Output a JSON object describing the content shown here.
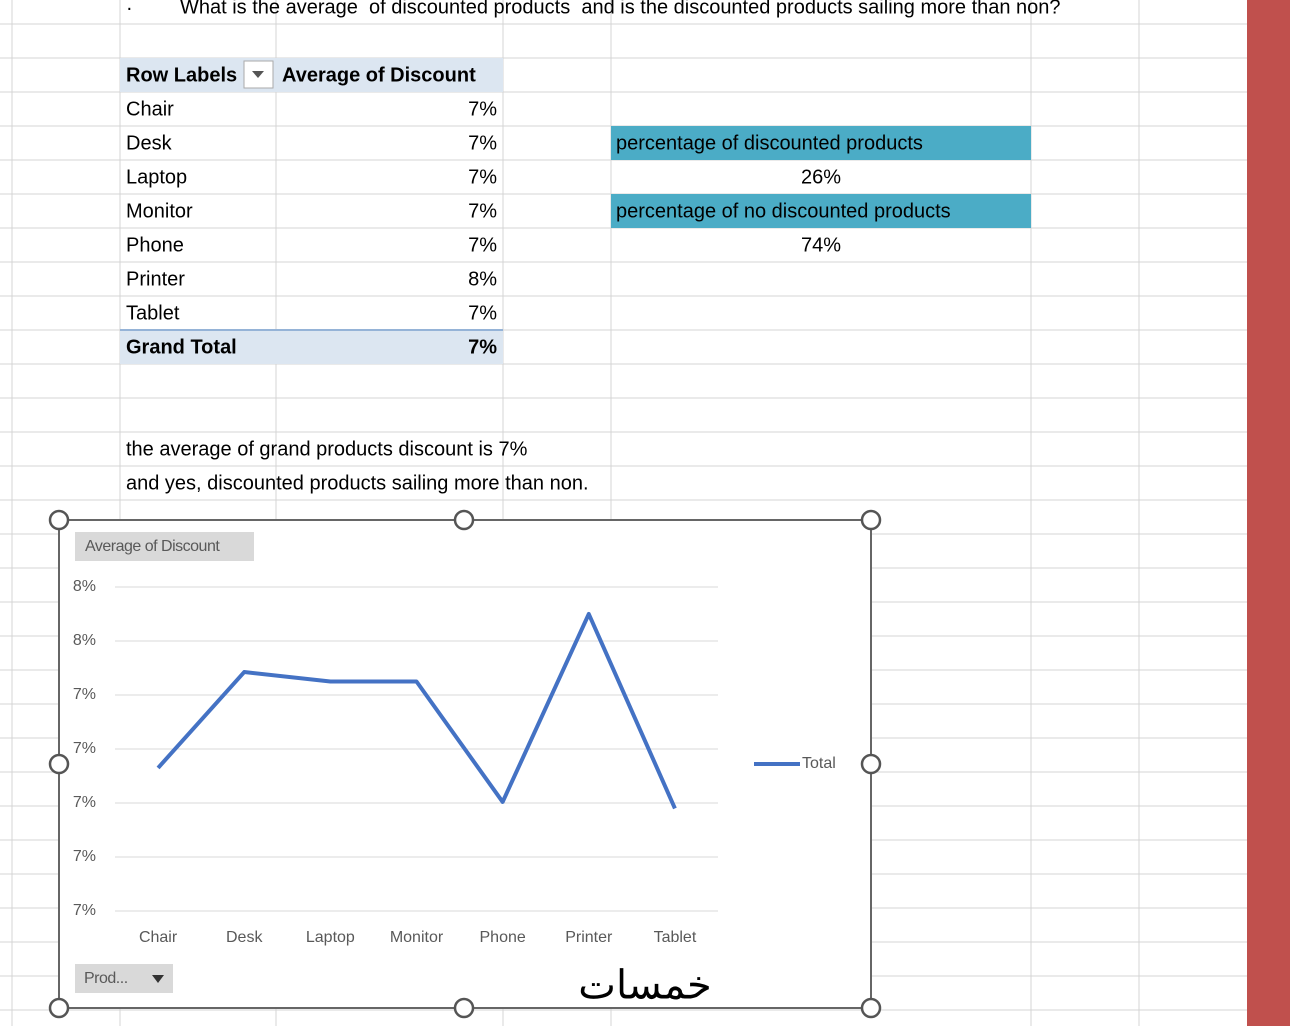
{
  "bullet": "·",
  "question": "What is the average  of discounted products  and is the discounted products sailing more than non?",
  "pivot_table": {
    "headers": [
      "Row Labels",
      "Average of Discount"
    ],
    "rows": [
      [
        "Chair",
        "7%"
      ],
      [
        "Desk",
        "7%"
      ],
      [
        "Laptop",
        "7%"
      ],
      [
        "Monitor",
        "7%"
      ],
      [
        "Phone",
        "7%"
      ],
      [
        "Printer",
        "8%"
      ],
      [
        "Tablet",
        "7%"
      ]
    ],
    "total": [
      "Grand Total",
      "7%"
    ]
  },
  "summary": [
    {
      "label": "percentage of discounted products",
      "value": "26%"
    },
    {
      "label": "percentage of no discounted products",
      "value": "74%"
    }
  ],
  "notes": [
    "the average of grand products discount is 7%",
    "and yes, discounted products sailing more than non."
  ],
  "watermark": "خمسات",
  "chart_data": {
    "type": "line",
    "field_button": "Average of Discount",
    "filter_button": "Prod...",
    "categories": [
      "Chair",
      "Desk",
      "Laptop",
      "Monitor",
      "Phone",
      "Printer",
      "Tablet"
    ],
    "series": [
      {
        "name": "Total",
        "color": "#4472c4",
        "values": [
          7.13,
          7.485,
          7.45,
          7.45,
          7.004,
          7.7,
          6.98
        ]
      }
    ],
    "ylim": [
      6.6,
      7.8
    ],
    "yticks": [
      {
        "value": 6.6,
        "label": "7%"
      },
      {
        "value": 6.8,
        "label": "7%"
      },
      {
        "value": 7.0,
        "label": "7%"
      },
      {
        "value": 7.2,
        "label": "7%"
      },
      {
        "value": 7.4,
        "label": "7%"
      },
      {
        "value": 7.6,
        "label": "8%"
      },
      {
        "value": 7.8,
        "label": "8%"
      }
    ],
    "grid": true
  }
}
